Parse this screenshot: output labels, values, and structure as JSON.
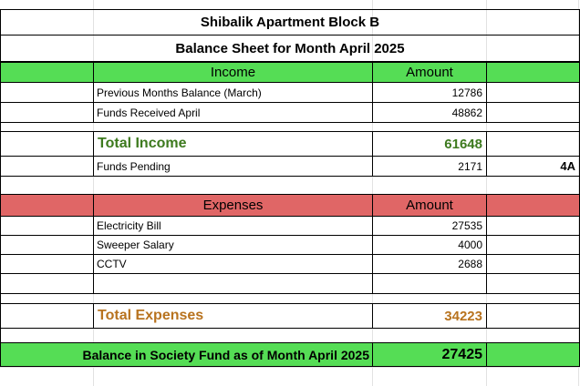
{
  "sheet": {
    "title": "Shibalik Apartment Block B",
    "subtitle": "Balance Sheet for Month April 2025",
    "colors": {
      "income_header": "#55dd55",
      "expense_header": "#e06666",
      "income_total": "#3d7a1e",
      "expense_total": "#b8731f",
      "balance_row": "#55dd55"
    },
    "income": {
      "header_label": "Income",
      "header_amount": "Amount",
      "rows": [
        {
          "label": "Previous Months Balance (March)",
          "amount": "12786"
        },
        {
          "label": "Funds Received April",
          "amount": "48862"
        }
      ],
      "total_label": "Total Income",
      "total_amount": "61648",
      "pending_label": "Funds Pending",
      "pending_amount": "2171",
      "pending_note": "4A"
    },
    "expenses": {
      "header_label": "Expenses",
      "header_amount": "Amount",
      "rows": [
        {
          "label": "Electricity Bill",
          "amount": "27535"
        },
        {
          "label": "Sweeper Salary",
          "amount": "4000"
        },
        {
          "label": "CCTV",
          "amount": "2688"
        }
      ],
      "total_label": "Total Expenses",
      "total_amount": "34223"
    },
    "balance": {
      "label": "Balance in Society Fund as of Month April 2025",
      "amount": "27425"
    }
  }
}
